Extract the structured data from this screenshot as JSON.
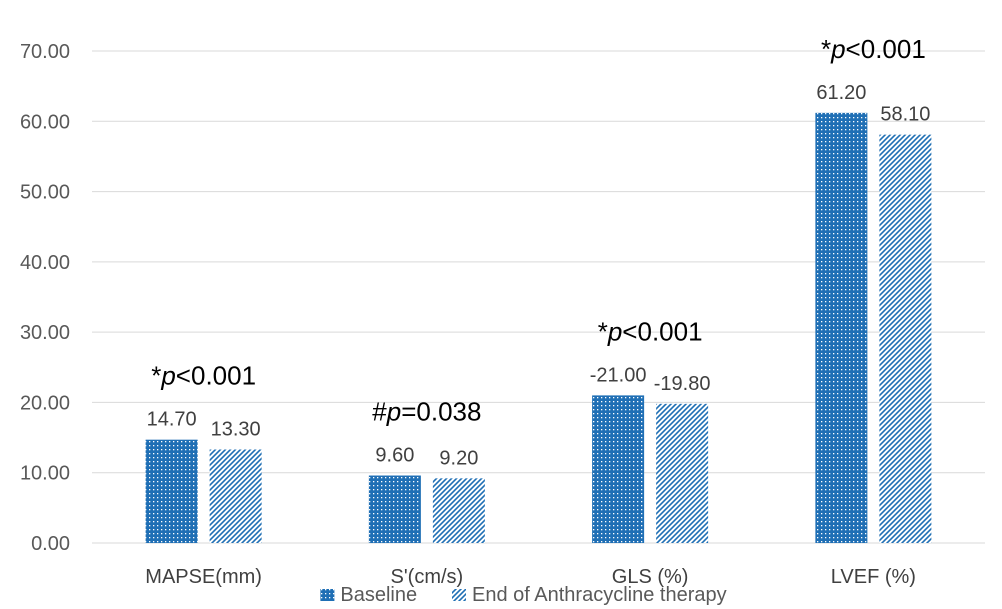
{
  "chart_data": {
    "type": "bar",
    "title": "",
    "xlabel": "",
    "ylabel": "",
    "ylim": [
      0,
      70
    ],
    "yticks": [
      "0.00",
      "10.00",
      "20.00",
      "30.00",
      "40.00",
      "50.00",
      "60.00",
      "70.00"
    ],
    "grid": true,
    "legend_position": "bottom",
    "categories": [
      "MAPSE(mm)",
      "S'(cm/s)",
      "GLS (%)",
      "LVEF (%)"
    ],
    "series": [
      {
        "name": "Baseline",
        "values": [
          14.7,
          9.6,
          21.0,
          61.2
        ],
        "labels": [
          "14.70",
          "9.60",
          "-21.00",
          "61.20"
        ],
        "color": "#1f6fb5",
        "pattern": "dots"
      },
      {
        "name": "End of Anthracycline therapy",
        "values": [
          13.3,
          9.2,
          19.8,
          58.1
        ],
        "labels": [
          "13.30",
          "9.20",
          "-19.80",
          "58.10"
        ],
        "color": "#1f6fb5",
        "pattern": "diagonal"
      }
    ],
    "annotations": [
      {
        "symbol": "*",
        "p": "p",
        "rest": "<0.001",
        "category": 0
      },
      {
        "symbol": "#",
        "p": "p",
        "rest": "=0.038",
        "category": 1
      },
      {
        "symbol": "*",
        "p": "p",
        "rest": "<0.001",
        "category": 2
      },
      {
        "symbol": "*",
        "p": "p",
        "rest": "<0.001",
        "category": 3
      }
    ]
  }
}
